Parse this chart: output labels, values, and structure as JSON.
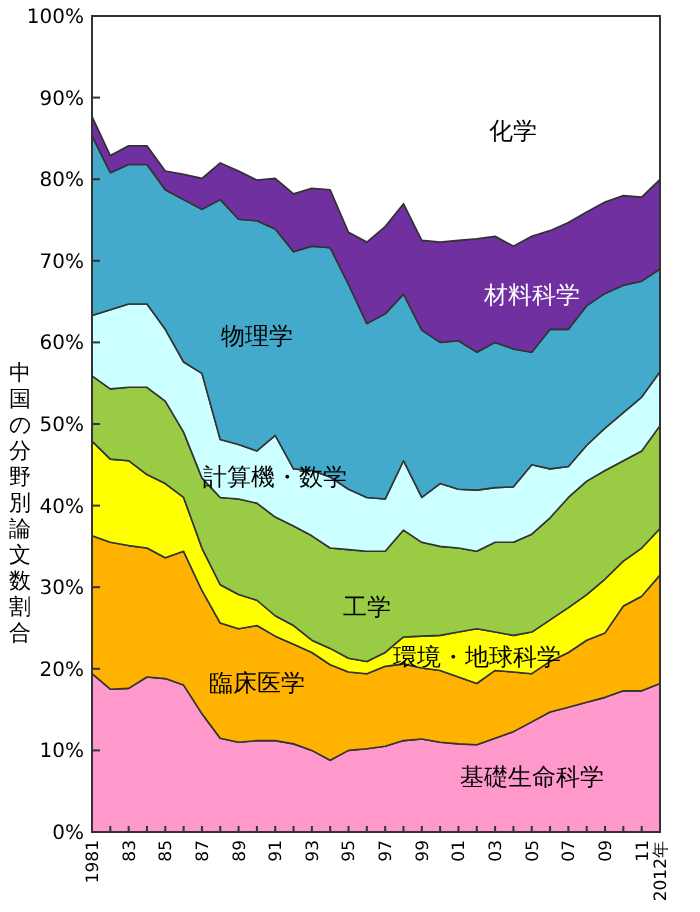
{
  "chart_data": {
    "type": "area",
    "stacked": true,
    "ylabel": "中国の分野別論文数割合",
    "x": [
      1981,
      1982,
      1983,
      1984,
      1985,
      1986,
      1987,
      1988,
      1989,
      1990,
      1991,
      1992,
      1993,
      1994,
      1995,
      1996,
      1997,
      1998,
      1999,
      2000,
      2001,
      2002,
      2003,
      2004,
      2005,
      2006,
      2007,
      2008,
      2009,
      2010,
      2011,
      2012
    ],
    "xlim": [
      1981,
      2012
    ],
    "xticks": [
      {
        "value": 1981,
        "label": "1981"
      },
      {
        "value": 1982,
        "label": null
      },
      {
        "value": 1983,
        "label": "83"
      },
      {
        "value": 1984,
        "label": null
      },
      {
        "value": 1985,
        "label": "85"
      },
      {
        "value": 1986,
        "label": null
      },
      {
        "value": 1987,
        "label": "87"
      },
      {
        "value": 1988,
        "label": null
      },
      {
        "value": 1989,
        "label": "89"
      },
      {
        "value": 1990,
        "label": null
      },
      {
        "value": 1991,
        "label": "91"
      },
      {
        "value": 1992,
        "label": null
      },
      {
        "value": 1993,
        "label": "93"
      },
      {
        "value": 1994,
        "label": null
      },
      {
        "value": 1995,
        "label": "95"
      },
      {
        "value": 1996,
        "label": null
      },
      {
        "value": 1997,
        "label": "97"
      },
      {
        "value": 1998,
        "label": null
      },
      {
        "value": 1999,
        "label": "99"
      },
      {
        "value": 2000,
        "label": null
      },
      {
        "value": 2001,
        "label": "01"
      },
      {
        "value": 2002,
        "label": null
      },
      {
        "value": 2003,
        "label": "03"
      },
      {
        "value": 2004,
        "label": null
      },
      {
        "value": 2005,
        "label": "05"
      },
      {
        "value": 2006,
        "label": null
      },
      {
        "value": 2007,
        "label": "07"
      },
      {
        "value": 2008,
        "label": null
      },
      {
        "value": 2009,
        "label": "09"
      },
      {
        "value": 2010,
        "label": null
      },
      {
        "value": 2011,
        "label": "11"
      },
      {
        "value": 2012,
        "label": "2012年"
      }
    ],
    "ylim": [
      0,
      100
    ],
    "yticks": [
      {
        "value": 0,
        "label": "0%"
      },
      {
        "value": 10,
        "label": "10%"
      },
      {
        "value": 20,
        "label": "20%"
      },
      {
        "value": 30,
        "label": "30%"
      },
      {
        "value": 40,
        "label": "40%"
      },
      {
        "value": 50,
        "label": "50%"
      },
      {
        "value": 60,
        "label": "60%"
      },
      {
        "value": 70,
        "label": "70%"
      },
      {
        "value": 80,
        "label": "80%"
      },
      {
        "value": 90,
        "label": "90%"
      },
      {
        "value": 100,
        "label": "100%"
      }
    ],
    "series": [
      {
        "name": "基礎生命科学",
        "color": "#ff99cc",
        "values": [
          19.4,
          17.5,
          17.6,
          19,
          18.8,
          18,
          14.5,
          11.5,
          11,
          11.2,
          11.2,
          10.8,
          10,
          8.8,
          10,
          10.2,
          10.5,
          11.2,
          11.4,
          11,
          10.8,
          10.7,
          11.5,
          12.3,
          13.5,
          14.7,
          15.3,
          15.9,
          16.5,
          17.3,
          17.3,
          18.2
        ]
      },
      {
        "name": "臨床医学",
        "color": "#ffb300",
        "values": [
          16.9,
          18.0,
          17.5,
          15.8,
          14.8,
          16.4,
          15.1,
          14.1,
          13.9,
          14.1,
          12.8,
          12.2,
          12.0,
          11.7,
          9.6,
          9.2,
          9.8,
          9.4,
          8.7,
          8.8,
          8.2,
          7.5,
          8.3,
          7.3,
          5.9,
          6.2,
          6.7,
          7.6,
          7.9,
          10.4,
          11.6,
          13.3
        ]
      },
      {
        "name": "環境・地球科学",
        "color": "#ffff00",
        "values": [
          11.6,
          10.2,
          10.4,
          9.0,
          9.1,
          6.6,
          5.2,
          4.7,
          4.2,
          3.1,
          2.5,
          2.3,
          1.5,
          2.0,
          1.7,
          1.5,
          1.7,
          3.3,
          3.9,
          4.3,
          5.5,
          6.7,
          4.7,
          4.5,
          5.1,
          5.1,
          5.5,
          5.6,
          6.6,
          5.5,
          5.9,
          5.7
        ]
      },
      {
        "name": "工学",
        "color": "#99cc44",
        "values": [
          8.0,
          8.6,
          9.0,
          10.7,
          10.1,
          8.0,
          8.6,
          10.7,
          11.7,
          11.9,
          12.1,
          12.2,
          12.8,
          12.3,
          13.3,
          13.5,
          12.4,
          13.1,
          11.5,
          10.9,
          10.3,
          9.5,
          11.0,
          11.4,
          12.0,
          12.5,
          13.5,
          13.9,
          13.3,
          12.3,
          11.9,
          12.6
        ]
      },
      {
        "name": "計算機・数学",
        "color": "#ccffff",
        "values": [
          7.4,
          9.7,
          10.2,
          10.2,
          8.8,
          8.6,
          12.8,
          7.1,
          6.7,
          6.4,
          10.0,
          7.0,
          8.0,
          8.7,
          7.4,
          6.6,
          6.4,
          8.5,
          5.5,
          7.7,
          7.2,
          7.5,
          6.7,
          6.8,
          8.5,
          6.0,
          3.8,
          4.4,
          5.2,
          5.9,
          6.6,
          6.6
        ]
      },
      {
        "name": "物理学",
        "color": "#44aacc",
        "values": [
          22.0,
          16.8,
          17.1,
          17.1,
          17.1,
          19.9,
          20.1,
          29.4,
          27.6,
          28.2,
          25.3,
          26.6,
          27.5,
          28.1,
          25.1,
          21.3,
          22.7,
          20.4,
          20.5,
          17.3,
          18.2,
          16.9,
          17.8,
          16.9,
          13.8,
          17.1,
          16.8,
          17.1,
          16.5,
          15.6,
          14.2,
          12.6
        ]
      },
      {
        "name": "材料科学",
        "color": "#7030a0",
        "values": [
          2.4,
          2.1,
          2.3,
          2.3,
          2.3,
          3.1,
          3.8,
          4.5,
          5.9,
          5.0,
          6.2,
          7.1,
          7.1,
          7.1,
          6.4,
          10.0,
          10.7,
          11.1,
          11.0,
          12.3,
          12.3,
          13.9,
          13.0,
          12.6,
          14.2,
          12.1,
          13.1,
          11.5,
          11.2,
          11.0,
          10.3,
          11.0
        ]
      },
      {
        "name": "化学",
        "color": "#ffffff",
        "values": [
          12.3,
          17.1,
          15.9,
          15.9,
          19.0,
          19.4,
          19.9,
          18.0,
          19.0,
          20.1,
          19.9,
          21.8,
          21.1,
          21.3,
          26.5,
          27.7,
          25.8,
          23.0,
          27.5,
          27.7,
          27.5,
          27.3,
          27.0,
          28.2,
          27.0,
          26.3,
          25.3,
          24.0,
          22.8,
          22.0,
          22.2,
          20.0
        ]
      }
    ]
  }
}
